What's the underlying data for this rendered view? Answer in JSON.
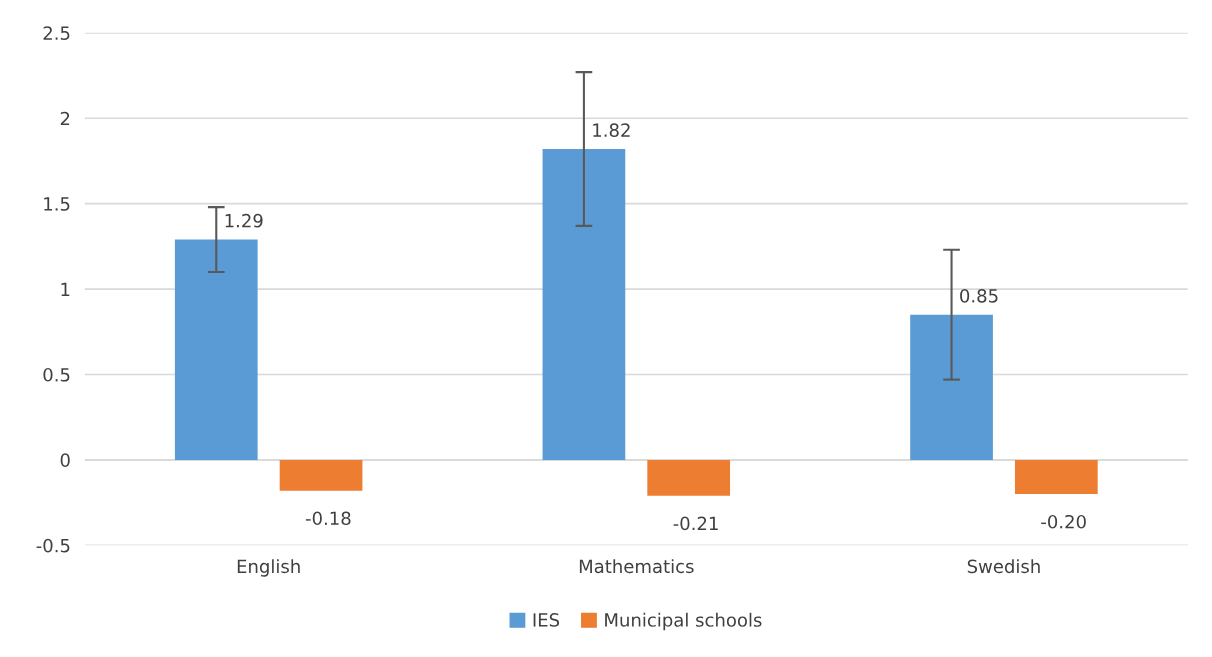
{
  "chart_data": {
    "type": "bar",
    "categories": [
      "English",
      "Mathematics",
      "Swedish"
    ],
    "series": [
      {
        "name": "IES",
        "color": "#5b9bd5",
        "values": [
          1.29,
          1.82,
          0.85
        ],
        "errors": [
          0.19,
          0.45,
          0.38
        ],
        "value_labels": [
          "1.29",
          "1.82",
          "0.85"
        ]
      },
      {
        "name": "Municipal schools",
        "color": "#ed7d31",
        "values": [
          -0.18,
          -0.21,
          -0.2
        ],
        "value_labels": [
          "-0.18",
          "-0.21",
          "-0.20"
        ]
      }
    ],
    "ylim": [
      -0.5,
      2.5
    ],
    "yticks": [
      -0.5,
      0,
      0.5,
      1,
      1.5,
      2,
      2.5
    ],
    "grid": "y",
    "legend": "bottom"
  }
}
